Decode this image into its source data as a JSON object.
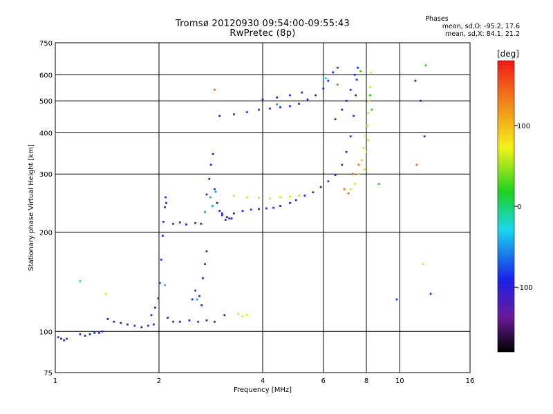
{
  "title": "Tromsø 20120930 09:54:00-09:55:43",
  "subtitle": "RwPretec (8p)",
  "phases": {
    "heading": "Phases",
    "line1": "mean, sd,O: -95.2, 17.6",
    "line2": "mean, sd,X:  84.1, 21.2"
  },
  "chart_data": {
    "type": "scatter",
    "title": "Tromsø 20120930 09:54:00-09:55:43",
    "subtitle": "RwPretec (8p)",
    "xlabel": "Frequency [MHz]",
    "ylabel": "Stationary phase Virtual Height [km]",
    "x_scale": "log",
    "y_scale": "log",
    "xlim": [
      1,
      16
    ],
    "ylim": [
      75,
      750
    ],
    "x_ticks": [
      1,
      2,
      4,
      6,
      8,
      10,
      16
    ],
    "x_tick_labels": [
      "1",
      "2",
      "4",
      "6",
      "8",
      "10",
      "16"
    ],
    "y_ticks": [
      75,
      100,
      200,
      300,
      400,
      500,
      600,
      750
    ],
    "y_tick_labels": [
      "75",
      "100",
      "200",
      "300",
      "400",
      "500",
      "600",
      "750"
    ],
    "grid": true,
    "colorbar": {
      "label": "[deg]",
      "range": [
        -180,
        180
      ],
      "ticks": [
        100,
        0,
        -100
      ],
      "tick_labels": [
        "100",
        "0",
        "-100"
      ]
    },
    "series": [
      {
        "phase": -100,
        "color": "#1e2ee8",
        "points": [
          [
            1.02,
            96
          ],
          [
            1.04,
            95
          ],
          [
            1.06,
            94
          ],
          [
            1.08,
            95
          ],
          [
            1.18,
            98
          ],
          [
            1.22,
            97
          ],
          [
            1.26,
            98
          ],
          [
            1.3,
            99
          ],
          [
            1.34,
            99
          ],
          [
            1.37,
            100
          ],
          [
            1.42,
            109
          ],
          [
            1.48,
            107
          ],
          [
            1.55,
            106
          ],
          [
            1.62,
            105
          ],
          [
            1.7,
            104
          ],
          [
            1.78,
            103
          ],
          [
            1.86,
            104
          ],
          [
            1.93,
            105
          ],
          [
            1.9,
            112
          ],
          [
            1.95,
            118
          ],
          [
            1.99,
            126
          ],
          [
            2.01,
            140
          ],
          [
            2.03,
            165
          ],
          [
            2.05,
            195
          ],
          [
            2.06,
            215
          ],
          [
            2.08,
            238
          ],
          [
            2.09,
            255
          ],
          [
            2.1,
            245
          ],
          [
            2.12,
            110
          ],
          [
            2.2,
            107
          ],
          [
            2.3,
            107
          ],
          [
            2.45,
            108
          ],
          [
            2.6,
            107
          ],
          [
            2.75,
            108
          ],
          [
            2.9,
            107
          ],
          [
            2.5,
            125
          ],
          [
            2.55,
            133
          ],
          [
            2.62,
            128
          ],
          [
            2.68,
            145
          ],
          [
            2.72,
            160
          ],
          [
            2.75,
            175
          ],
          [
            2.66,
            120
          ],
          [
            2.2,
            212
          ],
          [
            2.3,
            214
          ],
          [
            2.4,
            211
          ],
          [
            2.55,
            213
          ],
          [
            2.65,
            212
          ],
          [
            2.75,
            260
          ],
          [
            2.8,
            290
          ],
          [
            2.83,
            320
          ],
          [
            2.87,
            345
          ],
          [
            2.9,
            270
          ],
          [
            2.95,
            245
          ],
          [
            3.0,
            232
          ],
          [
            3.05,
            225
          ],
          [
            3.12,
            218
          ],
          [
            3.2,
            220
          ],
          [
            3.3,
            228
          ],
          [
            3.5,
            232
          ],
          [
            3.7,
            234
          ],
          [
            3.9,
            235
          ],
          [
            4.1,
            236
          ],
          [
            4.3,
            237
          ],
          [
            4.5,
            240
          ],
          [
            4.8,
            245
          ],
          [
            5.0,
            250
          ],
          [
            5.3,
            258
          ],
          [
            5.6,
            264
          ],
          [
            5.9,
            274
          ],
          [
            6.2,
            285
          ],
          [
            6.5,
            298
          ],
          [
            6.8,
            320
          ],
          [
            7.0,
            350
          ],
          [
            7.2,
            390
          ],
          [
            7.35,
            450
          ],
          [
            7.45,
            520
          ],
          [
            7.5,
            580
          ],
          [
            7.55,
            630
          ],
          [
            6.5,
            440
          ],
          [
            6.8,
            470
          ],
          [
            7.0,
            500
          ],
          [
            7.2,
            540
          ],
          [
            7.4,
            600
          ],
          [
            3.0,
            450
          ],
          [
            3.3,
            455
          ],
          [
            3.6,
            462
          ],
          [
            3.9,
            470
          ],
          [
            4.2,
            474
          ],
          [
            4.5,
            478
          ],
          [
            4.8,
            482
          ],
          [
            5.1,
            490
          ],
          [
            5.4,
            505
          ],
          [
            5.7,
            520
          ],
          [
            6.0,
            545
          ],
          [
            6.2,
            575
          ],
          [
            6.4,
            610
          ],
          [
            6.6,
            630
          ],
          [
            4.0,
            505
          ],
          [
            4.4,
            512
          ],
          [
            4.8,
            520
          ],
          [
            5.2,
            530
          ],
          [
            9.8,
            125
          ],
          [
            11.1,
            575
          ],
          [
            11.5,
            500
          ],
          [
            11.8,
            390
          ],
          [
            12.3,
            130
          ]
        ]
      },
      {
        "phase": -70,
        "color": "#1aa0f0",
        "points": [
          [
            2.82,
            255
          ],
          [
            2.86,
            240
          ],
          [
            2.92,
            265
          ],
          [
            2.72,
            230
          ],
          [
            2.58,
            125
          ],
          [
            4.4,
            488
          ]
        ]
      },
      {
        "phase": -140,
        "color": "#5a1a8c",
        "points": [
          [
            3.05,
            228
          ],
          [
            3.15,
            222
          ],
          [
            3.25,
            220
          ],
          [
            3.1,
            112
          ]
        ]
      },
      {
        "phase": 80,
        "color": "#d8e61e",
        "points": [
          [
            3.3,
            258
          ],
          [
            3.6,
            255
          ],
          [
            3.9,
            254
          ],
          [
            4.2,
            253
          ],
          [
            4.5,
            255
          ],
          [
            4.8,
            256
          ],
          [
            5.1,
            258
          ],
          [
            3.4,
            113
          ],
          [
            3.5,
            111
          ],
          [
            3.6,
            112
          ],
          [
            7.2,
            270
          ],
          [
            7.4,
            280
          ],
          [
            7.6,
            300
          ],
          [
            7.75,
            330
          ],
          [
            7.85,
            360
          ],
          [
            7.95,
            390
          ],
          [
            8.05,
            420
          ],
          [
            8.1,
            460
          ],
          [
            8.15,
            500
          ],
          [
            8.2,
            550
          ],
          [
            8.25,
            610
          ],
          [
            8.0,
            350
          ],
          [
            8.1,
            380
          ],
          [
            7.9,
            310
          ],
          [
            1.4,
            130
          ],
          [
            11.7,
            160
          ]
        ]
      },
      {
        "phase": 150,
        "color": "#f06a1e",
        "points": [
          [
            6.9,
            270
          ],
          [
            7.1,
            262
          ],
          [
            7.3,
            300
          ],
          [
            7.6,
            320
          ],
          [
            6.6,
            560
          ],
          [
            2.9,
            540
          ],
          [
            11.2,
            320
          ]
        ]
      },
      {
        "phase": 30,
        "color": "#2ad01e",
        "points": [
          [
            8.2,
            520
          ],
          [
            8.3,
            470
          ],
          [
            7.7,
            615
          ],
          [
            8.7,
            280
          ],
          [
            11.9,
            640
          ]
        ]
      },
      {
        "phase": -30,
        "color": "#1ad8c8",
        "points": [
          [
            1.18,
            142
          ],
          [
            2.08,
            138
          ],
          [
            6.1,
            585
          ]
        ]
      }
    ]
  }
}
